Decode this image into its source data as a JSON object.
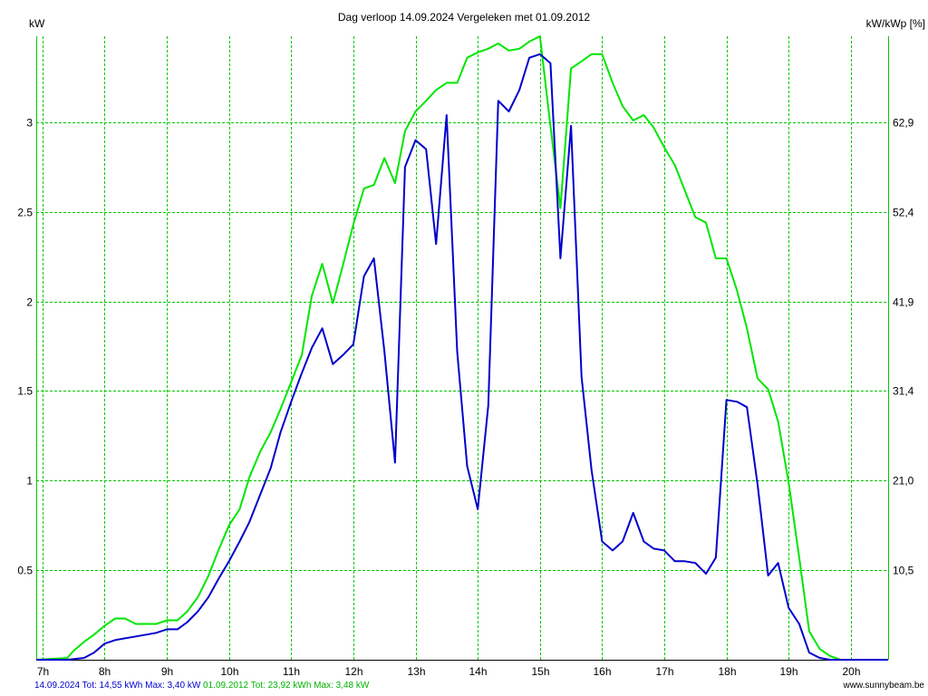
{
  "chart_data": {
    "type": "line",
    "title": "Dag  verloop 14.09.2024   Vergeleken met 01.09.2012",
    "ylabel_left": "kW",
    "ylabel_right": "kW/kWp [%]",
    "xlim": [
      6.9,
      20.6
    ],
    "ylim": [
      0,
      3.48
    ],
    "grid": true,
    "colors": {
      "grid": "#00c800",
      "axis": "#000000",
      "background": "#ffffff"
    },
    "x_ticks": [
      {
        "v": 7,
        "label": "7h"
      },
      {
        "v": 8,
        "label": "8h"
      },
      {
        "v": 9,
        "label": "9h"
      },
      {
        "v": 10,
        "label": "10h"
      },
      {
        "v": 11,
        "label": "11h"
      },
      {
        "v": 12,
        "label": "12h"
      },
      {
        "v": 13,
        "label": "13h"
      },
      {
        "v": 14,
        "label": "14h"
      },
      {
        "v": 15,
        "label": "15h"
      },
      {
        "v": 16,
        "label": "16h"
      },
      {
        "v": 17,
        "label": "17h"
      },
      {
        "v": 18,
        "label": "18h"
      },
      {
        "v": 19,
        "label": "19h"
      },
      {
        "v": 20,
        "label": "20h"
      }
    ],
    "y_ticks_left": [
      {
        "v": 0.5,
        "label": "0.5"
      },
      {
        "v": 1,
        "label": "1"
      },
      {
        "v": 1.5,
        "label": "1.5"
      },
      {
        "v": 2,
        "label": "2"
      },
      {
        "v": 2.5,
        "label": "2.5"
      },
      {
        "v": 3,
        "label": "3"
      }
    ],
    "y_ticks_right": [
      {
        "v": 0.5,
        "label": "10,5"
      },
      {
        "v": 1,
        "label": "21,0"
      },
      {
        "v": 1.5,
        "label": "31,4"
      },
      {
        "v": 2,
        "label": "41,9"
      },
      {
        "v": 2.5,
        "label": "52,4"
      },
      {
        "v": 3,
        "label": "62,9"
      }
    ],
    "series": [
      {
        "name": "14.09.2024",
        "color": "#0000cc",
        "x": [
          6.9,
          7.4,
          7.67,
          7.83,
          8.0,
          8.17,
          8.33,
          8.5,
          8.67,
          8.83,
          9.0,
          9.17,
          9.33,
          9.5,
          9.67,
          9.83,
          10.0,
          10.17,
          10.33,
          10.5,
          10.67,
          10.83,
          11.0,
          11.17,
          11.33,
          11.5,
          11.67,
          11.83,
          12.0,
          12.17,
          12.33,
          12.5,
          12.67,
          12.83,
          13.0,
          13.17,
          13.33,
          13.5,
          13.67,
          13.83,
          14.0,
          14.17,
          14.33,
          14.5,
          14.67,
          14.83,
          15.0,
          15.17,
          15.33,
          15.5,
          15.67,
          15.83,
          16.0,
          16.17,
          16.33,
          16.5,
          16.67,
          16.83,
          17.0,
          17.17,
          17.33,
          17.5,
          17.67,
          17.83,
          18.0,
          18.17,
          18.33,
          18.5,
          18.67,
          18.83,
          19.0,
          19.17,
          19.33,
          19.5,
          19.67,
          20.0,
          20.6
        ],
        "values": [
          0,
          0,
          0.01,
          0.04,
          0.09,
          0.11,
          0.12,
          0.13,
          0.14,
          0.15,
          0.17,
          0.17,
          0.21,
          0.27,
          0.35,
          0.45,
          0.55,
          0.66,
          0.77,
          0.92,
          1.07,
          1.27,
          1.44,
          1.6,
          1.74,
          1.85,
          1.65,
          1.7,
          1.76,
          2.14,
          2.24,
          1.72,
          1.1,
          2.75,
          2.9,
          2.85,
          2.32,
          3.04,
          1.72,
          1.08,
          0.84,
          1.42,
          3.12,
          3.06,
          3.18,
          3.36,
          3.38,
          3.33,
          2.24,
          2.98,
          1.58,
          1.06,
          0.66,
          0.61,
          0.66,
          0.82,
          0.66,
          0.62,
          0.61,
          0.55,
          0.55,
          0.54,
          0.48,
          0.57,
          1.45,
          1.44,
          1.41,
          0.98,
          0.47,
          0.54,
          0.29,
          0.2,
          0.04,
          0.01,
          0,
          0,
          0
        ]
      },
      {
        "name": "01.09.2012",
        "color": "#00e600",
        "x": [
          6.9,
          7.4,
          7.5,
          7.67,
          7.83,
          8.0,
          8.17,
          8.33,
          8.5,
          8.67,
          8.83,
          9.0,
          9.17,
          9.33,
          9.5,
          9.67,
          9.83,
          10.0,
          10.17,
          10.33,
          10.5,
          10.67,
          10.83,
          11.0,
          11.17,
          11.33,
          11.5,
          11.67,
          11.83,
          12.0,
          12.17,
          12.33,
          12.5,
          12.67,
          12.83,
          13.0,
          13.17,
          13.33,
          13.5,
          13.67,
          13.83,
          14.0,
          14.17,
          14.33,
          14.5,
          14.67,
          14.83,
          15.0,
          15.17,
          15.33,
          15.5,
          15.67,
          15.83,
          16.0,
          16.17,
          16.33,
          16.5,
          16.67,
          16.83,
          17.0,
          17.17,
          17.33,
          17.5,
          17.67,
          17.83,
          18.0,
          18.17,
          18.33,
          18.5,
          18.67,
          18.83,
          19.0,
          19.17,
          19.33,
          19.5,
          19.67,
          19.83,
          20.0,
          20.6
        ],
        "values": [
          0,
          0.01,
          0.05,
          0.1,
          0.14,
          0.19,
          0.23,
          0.23,
          0.2,
          0.2,
          0.2,
          0.22,
          0.22,
          0.27,
          0.35,
          0.47,
          0.61,
          0.75,
          0.84,
          1.02,
          1.16,
          1.27,
          1.4,
          1.55,
          1.7,
          2.03,
          2.21,
          1.99,
          2.2,
          2.43,
          2.63,
          2.65,
          2.8,
          2.66,
          2.95,
          3.06,
          3.12,
          3.18,
          3.22,
          3.22,
          3.36,
          3.39,
          3.41,
          3.44,
          3.4,
          3.41,
          3.45,
          3.48,
          2.98,
          2.52,
          3.3,
          3.34,
          3.38,
          3.38,
          3.22,
          3.09,
          3.01,
          3.04,
          2.97,
          2.86,
          2.76,
          2.62,
          2.47,
          2.44,
          2.24,
          2.24,
          2.06,
          1.85,
          1.57,
          1.51,
          1.33,
          0.99,
          0.57,
          0.16,
          0.06,
          0.02,
          0,
          0,
          0
        ]
      }
    ]
  },
  "footer": {
    "left_a": "14.09.2024 Tot: 14,55 kWh Max: 3,40 kW",
    "left_b": "01.09.2012 Tot: 23,92 kWh Max: 3,48 kW",
    "right": "www.sunnybeam.be",
    "color_a": "#0000cc",
    "color_b": "#00b400",
    "color_right": "#000000"
  }
}
